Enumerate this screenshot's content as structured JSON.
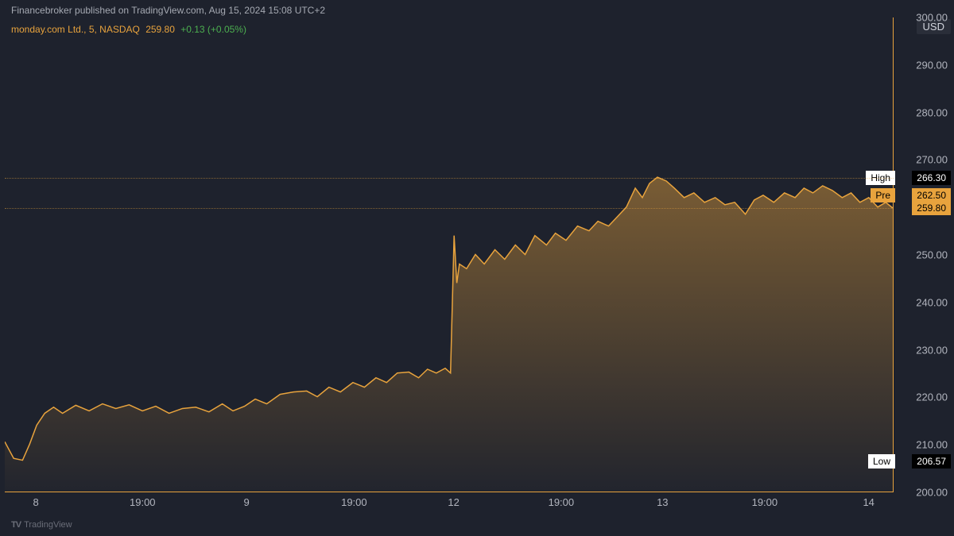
{
  "header": {
    "publisher": "Financebroker published on TradingView.com, Aug 15, 2024 15:08 UTC+2"
  },
  "ticker": {
    "symbol": "monday.com Ltd., 5, NASDAQ",
    "last_price": "259.80",
    "change": "+0.13 (+0.05%)"
  },
  "chart": {
    "type": "area",
    "line_color": "#e8a33d",
    "fill_top_color": "rgba(232,163,61,0.45)",
    "fill_bottom_color": "rgba(232,163,61,0.02)",
    "background_color": "#1e222d",
    "axis_color": "#e8a33d",
    "grid_dash_color": "rgba(232,163,61,0.5)",
    "ylim": [
      200,
      300
    ],
    "y_ticks": [
      200,
      210,
      220,
      230,
      240,
      250,
      260,
      270,
      280,
      290,
      300
    ],
    "y_tick_labels": [
      "200.00",
      "210.00",
      "220.00",
      "230.00",
      "240.00",
      "250.00",
      "260.00",
      "270.00",
      "280.00",
      "290.00",
      "300.00"
    ],
    "currency": "USD",
    "x_ticks": [
      {
        "pos": 0.035,
        "label": "8"
      },
      {
        "pos": 0.155,
        "label": "19:00"
      },
      {
        "pos": 0.272,
        "label": "9"
      },
      {
        "pos": 0.393,
        "label": "19:00"
      },
      {
        "pos": 0.505,
        "label": "12"
      },
      {
        "pos": 0.626,
        "label": "19:00"
      },
      {
        "pos": 0.74,
        "label": "13"
      },
      {
        "pos": 0.855,
        "label": "19:00"
      },
      {
        "pos": 0.972,
        "label": "14"
      },
      {
        "pos": 1.09,
        "label": "19:00"
      }
    ],
    "markers": {
      "high": {
        "label": "High",
        "value": "266.30",
        "y": 266.3
      },
      "pre": {
        "label": "Pre",
        "value": "262.50",
        "y": 262.5
      },
      "current": {
        "value": "259.80",
        "y": 259.8
      },
      "low": {
        "label": "Low",
        "value": "206.57",
        "y": 206.57
      }
    },
    "series": [
      [
        0.0,
        210.5
      ],
      [
        0.01,
        207.0
      ],
      [
        0.02,
        206.6
      ],
      [
        0.028,
        210.0
      ],
      [
        0.036,
        214.0
      ],
      [
        0.045,
        216.5
      ],
      [
        0.055,
        217.8
      ],
      [
        0.065,
        216.5
      ],
      [
        0.08,
        218.2
      ],
      [
        0.095,
        217.0
      ],
      [
        0.11,
        218.5
      ],
      [
        0.125,
        217.5
      ],
      [
        0.14,
        218.3
      ],
      [
        0.155,
        217.0
      ],
      [
        0.17,
        218.0
      ],
      [
        0.185,
        216.5
      ],
      [
        0.2,
        217.5
      ],
      [
        0.215,
        217.8
      ],
      [
        0.23,
        216.8
      ],
      [
        0.245,
        218.5
      ],
      [
        0.257,
        217.0
      ],
      [
        0.27,
        218.0
      ],
      [
        0.282,
        219.5
      ],
      [
        0.295,
        218.5
      ],
      [
        0.31,
        220.5
      ],
      [
        0.325,
        221.0
      ],
      [
        0.34,
        221.2
      ],
      [
        0.352,
        220.0
      ],
      [
        0.365,
        222.0
      ],
      [
        0.378,
        221.0
      ],
      [
        0.392,
        223.0
      ],
      [
        0.405,
        222.0
      ],
      [
        0.418,
        224.0
      ],
      [
        0.43,
        223.0
      ],
      [
        0.442,
        225.0
      ],
      [
        0.455,
        225.2
      ],
      [
        0.466,
        224.0
      ],
      [
        0.476,
        225.8
      ],
      [
        0.486,
        225.0
      ],
      [
        0.496,
        226.0
      ],
      [
        0.502,
        225.0
      ],
      [
        0.506,
        254.0
      ],
      [
        0.509,
        244.0
      ],
      [
        0.512,
        248.0
      ],
      [
        0.52,
        247.0
      ],
      [
        0.53,
        250.0
      ],
      [
        0.54,
        248.0
      ],
      [
        0.552,
        251.0
      ],
      [
        0.563,
        249.0
      ],
      [
        0.575,
        252.0
      ],
      [
        0.586,
        250.0
      ],
      [
        0.597,
        254.0
      ],
      [
        0.61,
        252.0
      ],
      [
        0.62,
        254.5
      ],
      [
        0.632,
        253.0
      ],
      [
        0.645,
        256.0
      ],
      [
        0.658,
        255.0
      ],
      [
        0.668,
        257.0
      ],
      [
        0.68,
        256.0
      ],
      [
        0.69,
        258.0
      ],
      [
        0.7,
        260.0
      ],
      [
        0.71,
        264.0
      ],
      [
        0.718,
        262.0
      ],
      [
        0.726,
        265.0
      ],
      [
        0.735,
        266.3
      ],
      [
        0.745,
        265.5
      ],
      [
        0.754,
        264.0
      ],
      [
        0.765,
        262.0
      ],
      [
        0.776,
        263.0
      ],
      [
        0.788,
        261.0
      ],
      [
        0.8,
        262.0
      ],
      [
        0.811,
        260.5
      ],
      [
        0.822,
        261.0
      ],
      [
        0.834,
        258.5
      ],
      [
        0.844,
        261.5
      ],
      [
        0.854,
        262.5
      ],
      [
        0.866,
        261.0
      ],
      [
        0.878,
        263.0
      ],
      [
        0.89,
        262.0
      ],
      [
        0.9,
        264.0
      ],
      [
        0.91,
        263.0
      ],
      [
        0.921,
        264.5
      ],
      [
        0.932,
        263.5
      ],
      [
        0.943,
        262.0
      ],
      [
        0.953,
        263.0
      ],
      [
        0.963,
        261.0
      ],
      [
        0.973,
        262.0
      ],
      [
        0.983,
        260.0
      ],
      [
        0.992,
        261.0
      ],
      [
        1.0,
        259.8
      ]
    ]
  },
  "footer": {
    "brand_icon": "TV",
    "brand": "TradingView"
  }
}
